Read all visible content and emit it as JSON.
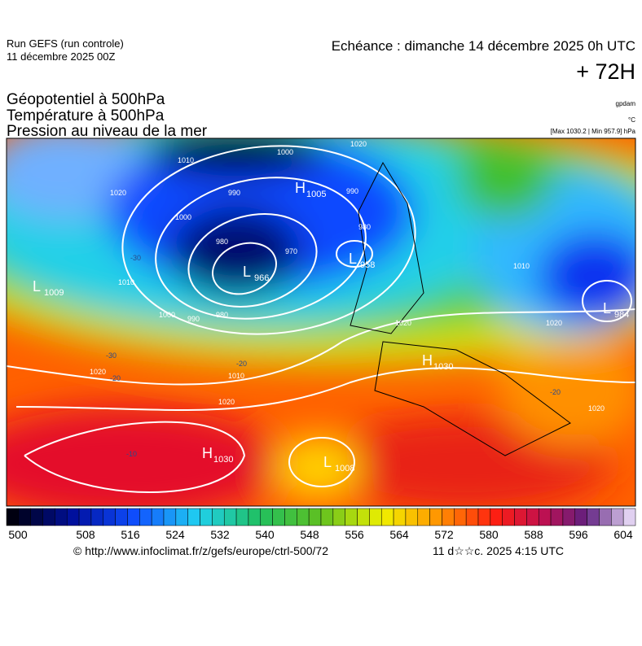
{
  "header": {
    "run": "Run GEFS (run controle)",
    "run_date": "11 décembre 2025 00Z",
    "echeance": "Echéance : dimanche 14 décembre 2025 0h UTC",
    "lead": "+ 72H"
  },
  "titles": [
    "Géopotentiel à 500hPa",
    "Température à 500hPa",
    "Pression au niveau de la mer"
  ],
  "units": {
    "geopotential": "gpdam",
    "temperature": "°C",
    "pressure": "[Max 1030.2 | Min 957.9] hPa"
  },
  "centers": [
    {
      "type": "L",
      "value": "1009"
    },
    {
      "type": "H",
      "value": "1005"
    },
    {
      "type": "L",
      "value": "966"
    },
    {
      "type": "L",
      "value": "958"
    },
    {
      "type": "L",
      "value": "984"
    },
    {
      "type": "H",
      "value": "1030"
    },
    {
      "type": "H",
      "value": "1030"
    },
    {
      "type": "L",
      "value": "1008"
    }
  ],
  "isobar_labels": [
    "1020",
    "1010",
    "1000",
    "990",
    "980",
    "970",
    "1000",
    "990",
    "980",
    "1000",
    "1010",
    "1020",
    "1020",
    "1010",
    "1020",
    "980",
    "990",
    "1010",
    "1020",
    "1020",
    "1020"
  ],
  "temperature_labels": [
    "-30",
    "-20",
    "-20",
    "-10",
    "-20",
    "-30"
  ],
  "colorbar": [
    500,
    508,
    516,
    524,
    532,
    540,
    548,
    556,
    564,
    572,
    580,
    588,
    596,
    604
  ],
  "footer": {
    "source": "© http://www.infoclimat.fr/z/gefs/europe/ctrl-500/72",
    "timestamp": "11 d☆☆c. 2025  4:15 UTC"
  }
}
